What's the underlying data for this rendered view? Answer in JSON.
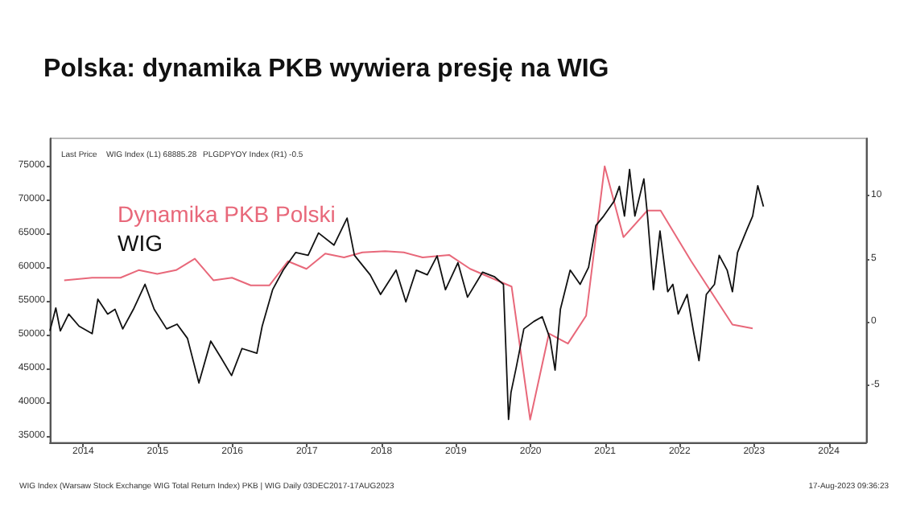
{
  "chart_data": {
    "type": "line",
    "title": "Polska: dynamika PKB wywiera presję na WIG",
    "annotations": [
      "Last Price",
      "WIG Index (L1) 68885.28",
      "PLGDPYOY Index (R1) -0.5",
      "WIG Index (Warsaw Stock Exchange WIG Total Return Index) PKB | WIG Daily 03DEC2017-17AUG2023",
      "17-Aug-2023 09:36:23"
    ],
    "series": [
      {
        "name": "Dynamika PKB Polski",
        "color": "#e8687a",
        "axis": "y2",
        "x": [
          "2014-03-31",
          "2014-08-15",
          "2015-01-01",
          "2015-03-31",
          "2015-06-30",
          "2015-09-30",
          "2015-12-31",
          "2016-03-31",
          "2016-06-30",
          "2016-09-30",
          "2016-12-31",
          "2017-03-31",
          "2017-06-30",
          "2017-09-30",
          "2017-12-31",
          "2018-03-31",
          "2018-07-20",
          "2018-10-20",
          "2019-01-20",
          "2019-05-30",
          "2019-09-10",
          "2020-03-31",
          "2020-06-30",
          "2020-09-30",
          "2021-01-01",
          "2021-03-31",
          "2021-06-30",
          "2021-09-30",
          "2022-01-25",
          "2022-03-31",
          "2022-08-28",
          "2023-03-18",
          "2023-06-25"
        ],
        "values": [
          3.3,
          3.5,
          3.5,
          4.1,
          3.8,
          4.1,
          5.0,
          3.3,
          3.5,
          2.9,
          2.9,
          4.8,
          4.2,
          5.4,
          5.1,
          5.5,
          5.6,
          5.5,
          5.1,
          5.3,
          4.2,
          2.8,
          -7.7,
          -0.9,
          -1.7,
          0.5,
          12.3,
          6.7,
          8.8,
          8.8,
          4.8,
          -0.2,
          -0.5
        ]
      },
      {
        "name": "WIG",
        "color": "#111111",
        "x": [
          "2014-01-20",
          "2014-02-18",
          "2014-03-12",
          "2014-04-22",
          "2014-06-12",
          "2014-08-15",
          "2014-09-12",
          "2014-10-30",
          "2014-12-05",
          "2015-01-12",
          "2015-03-05",
          "2015-05-01",
          "2015-06-15",
          "2015-08-15",
          "2015-10-05",
          "2015-11-25",
          "2016-01-20",
          "2016-03-18",
          "2016-05-08",
          "2016-06-28",
          "2016-08-18",
          "2016-10-30",
          "2016-11-25",
          "2017-01-15",
          "2017-03-08",
          "2017-05-08",
          "2017-07-08",
          "2017-08-28",
          "2017-11-12",
          "2018-01-15",
          "2018-02-20",
          "2018-05-08",
          "2018-06-28",
          "2018-09-12",
          "2018-10-30",
          "2018-12-20",
          "2019-02-12",
          "2019-04-01",
          "2019-05-12",
          "2019-07-12",
          "2019-08-28",
          "2019-11-10",
          "2020-01-08",
          "2020-02-20",
          "2020-03-16",
          "2020-03-28",
          "2020-04-22",
          "2020-05-30",
          "2020-07-18",
          "2020-08-28",
          "2020-10-05",
          "2020-10-30",
          "2020-11-25",
          "2021-01-12",
          "2021-03-02",
          "2021-04-12",
          "2021-05-18",
          "2021-06-25",
          "2021-08-15",
          "2021-09-10",
          "2021-10-05",
          "2021-10-30",
          "2021-11-25",
          "2022-01-08",
          "2022-01-26",
          "2022-02-24",
          "2022-03-28",
          "2022-05-05",
          "2022-05-30",
          "2022-06-25",
          "2022-08-08",
          "2022-09-10",
          "2022-10-05",
          "2022-11-10",
          "2022-12-20",
          "2023-01-12",
          "2023-02-20",
          "2023-03-18",
          "2023-04-12",
          "2023-05-25",
          "2023-06-25",
          "2023-07-20",
          "2023-08-17"
        ],
        "values": [
          50500,
          53900,
          50500,
          53000,
          51200,
          50100,
          55200,
          53000,
          53700,
          50800,
          53700,
          57400,
          53700,
          50800,
          51500,
          49400,
          42800,
          49000,
          46500,
          43900,
          47900,
          47200,
          51200,
          56600,
          59500,
          62100,
          61700,
          65000,
          63200,
          67200,
          61700,
          58800,
          55900,
          59500,
          54800,
          59500,
          58800,
          61600,
          56600,
          60600,
          55500,
          59200,
          58500,
          57400,
          37400,
          41400,
          45000,
          50800,
          51900,
          52600,
          49400,
          44700,
          53700,
          59500,
          57400,
          59900,
          66100,
          67500,
          69700,
          71900,
          67500,
          74400,
          67500,
          73000,
          67500,
          56600,
          65300,
          56300,
          57400,
          53000,
          55900,
          50100,
          46100,
          55900,
          57400,
          61700,
          59500,
          56300,
          62100,
          65300,
          67500,
          72000,
          68900
        ]
      }
    ],
    "xlim": [
      "2014-01-20",
      "2025-01-01"
    ],
    "xticks": [
      {
        "value": "2014-07-02",
        "label": "2014"
      },
      {
        "value": "2015-07-02",
        "label": "2015"
      },
      {
        "value": "2016-07-02",
        "label": "2016"
      },
      {
        "value": "2017-07-02",
        "label": "2017"
      },
      {
        "value": "2018-07-02",
        "label": "2018"
      },
      {
        "value": "2019-07-02",
        "label": "2019"
      },
      {
        "value": "2020-07-02",
        "label": "2020"
      },
      {
        "value": "2021-07-02",
        "label": "2021"
      },
      {
        "value": "2022-07-02",
        "label": "2022"
      },
      {
        "value": "2023-07-02",
        "label": "2023"
      },
      {
        "value": "2024-07-02",
        "label": "2024"
      }
    ],
    "ylim": [
      34000,
      79000
    ],
    "yticks": [
      35000,
      40000,
      45000,
      50000,
      55000,
      60000,
      65000,
      70000,
      75000
    ],
    "y2lim": [
      -9.5,
      14.5
    ],
    "y2ticks": [
      -5,
      0,
      5,
      10
    ],
    "grid": false,
    "legend": "top left",
    "marker": "none",
    "line_style": "solid"
  }
}
